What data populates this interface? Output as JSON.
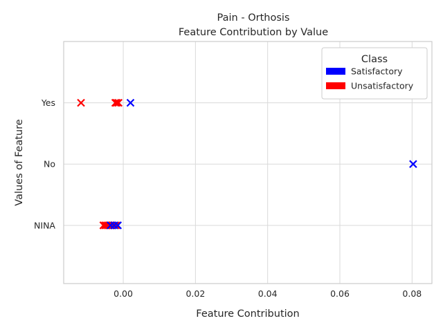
{
  "chart_data": {
    "type": "scatter",
    "title": "Pain - Orthosis",
    "subtitle": "Feature Contribution by Value",
    "xlabel": "Feature Contribution",
    "ylabel": "Values of Feature",
    "xlim": [
      -0.0165,
      0.0855
    ],
    "x_ticks": [
      0.0,
      0.02,
      0.04,
      0.06,
      0.08
    ],
    "x_tick_labels": [
      "0.00",
      "0.02",
      "0.04",
      "0.06",
      "0.08"
    ],
    "categories": [
      "NINA",
      "No",
      "Yes"
    ],
    "ylim": [
      -0.95,
      3.0
    ],
    "grid": true,
    "marker": "x",
    "legend": {
      "title": "Class",
      "placement": "top-right",
      "entries": [
        {
          "label": "Satisfactory",
          "color": "#0000ff"
        },
        {
          "label": "Unsatisfactory",
          "color": "#ff0000"
        }
      ]
    },
    "series": [
      {
        "name": "Unsatisfactory",
        "color": "#ff0000",
        "points": [
          {
            "x": -0.0117,
            "y": "Yes"
          },
          {
            "x": -0.0022,
            "y": "Yes"
          },
          {
            "x": -0.0018,
            "y": "Yes"
          },
          {
            "x": -0.0013,
            "y": "Yes"
          },
          {
            "x": -0.0055,
            "y": "NINA"
          },
          {
            "x": -0.005,
            "y": "NINA"
          },
          {
            "x": -0.0045,
            "y": "NINA"
          },
          {
            "x": -0.004,
            "y": "NINA"
          },
          {
            "x": -0.003,
            "y": "NINA"
          },
          {
            "x": -0.002,
            "y": "NINA"
          }
        ]
      },
      {
        "name": "Satisfactory",
        "color": "#0000ff",
        "points": [
          {
            "x": 0.002,
            "y": "Yes"
          },
          {
            "x": 0.0803,
            "y": "No"
          },
          {
            "x": -0.0035,
            "y": "NINA"
          },
          {
            "x": -0.0025,
            "y": "NINA"
          },
          {
            "x": -0.0015,
            "y": "NINA"
          }
        ]
      }
    ]
  }
}
